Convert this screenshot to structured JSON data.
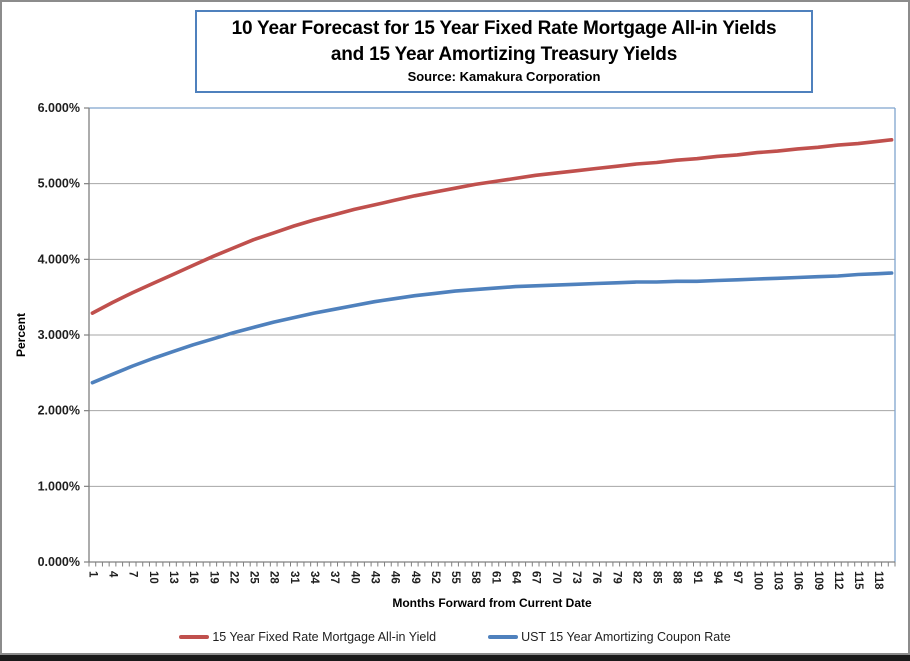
{
  "title": {
    "line1": "10 Year Forecast for 15 Year Fixed Rate Mortgage All-in Yields",
    "line2": "and 15 Year Amortizing Treasury Yields",
    "source": "Source: Kamakura Corporation",
    "border_color": "#4f81bd"
  },
  "colors": {
    "gridline": "#a6a6a6",
    "axis": "#808080",
    "plot_border": "#7fa5ce",
    "frame_border": "#8c8c8c",
    "bottom_bar": "#1a1a1a",
    "tick_text": "#1f1f1f"
  },
  "chart_data": {
    "type": "line",
    "title": "10 Year Forecast for 15 Year Fixed Rate Mortgage All-in Yields and 15 Year Amortizing Treasury Yields",
    "subtitle": "Source: Kamakura Corporation",
    "xlabel": "Months Forward from Current Date",
    "ylabel": "Percent",
    "xlim": [
      0,
      120
    ],
    "ylim": [
      0,
      6
    ],
    "grid": "horizontal",
    "legend_position": "bottom",
    "y_tick_labels": [
      "0.000%",
      "1.000%",
      "2.000%",
      "3.000%",
      "4.000%",
      "5.000%",
      "6.000%"
    ],
    "y_tick_values": [
      0,
      1,
      2,
      3,
      4,
      5,
      6
    ],
    "x_tick_labels": [
      "1",
      "4",
      "7",
      "10",
      "13",
      "16",
      "19",
      "22",
      "25",
      "28",
      "31",
      "34",
      "37",
      "40",
      "43",
      "46",
      "49",
      "52",
      "55",
      "58",
      "61",
      "64",
      "67",
      "70",
      "73",
      "76",
      "79",
      "82",
      "85",
      "88",
      "91",
      "94",
      "97",
      "100",
      "103",
      "106",
      "109",
      "112",
      "115",
      "118"
    ],
    "x": [
      1,
      4,
      7,
      10,
      13,
      16,
      19,
      22,
      25,
      28,
      31,
      34,
      37,
      40,
      43,
      46,
      49,
      52,
      55,
      58,
      61,
      64,
      67,
      70,
      73,
      76,
      79,
      82,
      85,
      88,
      91,
      94,
      97,
      100,
      103,
      106,
      109,
      112,
      115,
      118,
      120
    ],
    "series": [
      {
        "name": "15 Year Fixed Rate Mortgage All-in Yield",
        "color": "#c0504d",
        "values": [
          3.29,
          3.43,
          3.56,
          3.68,
          3.8,
          3.92,
          4.04,
          4.15,
          4.26,
          4.35,
          4.44,
          4.52,
          4.59,
          4.66,
          4.72,
          4.78,
          4.84,
          4.89,
          4.94,
          4.99,
          5.03,
          5.07,
          5.11,
          5.14,
          5.17,
          5.2,
          5.23,
          5.26,
          5.28,
          5.31,
          5.33,
          5.36,
          5.38,
          5.41,
          5.43,
          5.46,
          5.48,
          5.51,
          5.53,
          5.56,
          5.58
        ]
      },
      {
        "name": "UST 15 Year Amortizing Coupon Rate",
        "color": "#4f81bd",
        "values": [
          2.37,
          2.48,
          2.59,
          2.69,
          2.78,
          2.87,
          2.95,
          3.03,
          3.1,
          3.17,
          3.23,
          3.29,
          3.34,
          3.39,
          3.44,
          3.48,
          3.52,
          3.55,
          3.58,
          3.6,
          3.62,
          3.64,
          3.65,
          3.66,
          3.67,
          3.68,
          3.69,
          3.7,
          3.7,
          3.71,
          3.71,
          3.72,
          3.73,
          3.74,
          3.75,
          3.76,
          3.77,
          3.78,
          3.8,
          3.81,
          3.82
        ]
      }
    ]
  }
}
